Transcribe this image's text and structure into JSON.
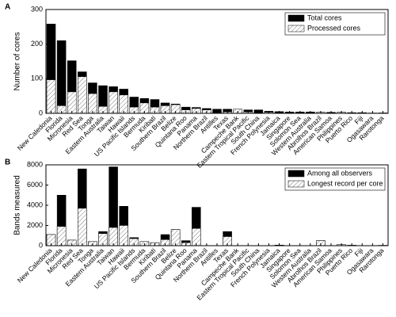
{
  "chart_data": [
    {
      "type": "bar",
      "panel_label": "A",
      "ylabel": "Number of cores",
      "categories": [
        "New Caledonia",
        "Florida",
        "Micronesia",
        "Red Sea",
        "Tonga",
        "Eastern Australia",
        "Taiwan",
        "Hawaii",
        "US Pacific Islands",
        "Bermuda",
        "Kiribati",
        "Southern Brazil",
        "Belize",
        "Quintana Roo",
        "Panama",
        "Northern Brazil",
        "Antilles",
        "Texas",
        "Campeche Bank",
        "Eastern Tropical Pacific",
        "South China",
        "French Polynesia",
        "Jamaica",
        "Singapore",
        "Solomon Sea",
        "Western Australia",
        "Abrolhos Brazil",
        "American Samoa",
        "Philippines",
        "Puerto Rico",
        "Fiji",
        "Ogasawara",
        "Rarotonga"
      ],
      "series": [
        {
          "name": "Total cores",
          "color": "#000000",
          "values": [
            258,
            210,
            152,
            120,
            88,
            80,
            77,
            70,
            47,
            43,
            40,
            30,
            27,
            18,
            17,
            14,
            12,
            12,
            12,
            10,
            10,
            6,
            5,
            4,
            4,
            4,
            3,
            3,
            3,
            2,
            2,
            1,
            1
          ]
        },
        {
          "name": "Processed cores",
          "color": "#ffffff",
          "hatch": true,
          "values": [
            97,
            22,
            62,
            106,
            57,
            20,
            62,
            53,
            18,
            30,
            18,
            22,
            25,
            10,
            14,
            10,
            2,
            4,
            12,
            4,
            0,
            3,
            0,
            0,
            0,
            0,
            3,
            0,
            3,
            0,
            0,
            0,
            1
          ]
        }
      ],
      "ylim": [
        0,
        300
      ],
      "yticks": [
        0,
        100,
        200,
        300
      ],
      "legend": "upper right"
    },
    {
      "type": "bar",
      "panel_label": "B",
      "ylabel": "Bands measured",
      "categories": [
        "New Caledonia",
        "Florida",
        "Micronesia",
        "Red Sea",
        "Tonga",
        "Eastern Australia",
        "Taiwan",
        "Hawaii",
        "US Pacific Islands",
        "Bermuda",
        "Kiribati",
        "Southern Brazil",
        "Belize",
        "Quintana Roo",
        "Panama",
        "Northern Brazil",
        "Antilles",
        "Texas",
        "Campeche Bank",
        "Eastern Tropical Pacific",
        "South China",
        "French Polynesia",
        "Jamaica",
        "Singapore",
        "Solomon Sea",
        "Western Australia",
        "Abrolhos Brazil",
        "American Samoa",
        "Philippines",
        "Puerto Rico",
        "Fiji",
        "Ogasawara",
        "Rarotonga"
      ],
      "series": [
        {
          "name": "Among all observers",
          "color": "#000000",
          "values": [
            1100,
            5000,
            550,
            7600,
            400,
            1400,
            7800,
            3900,
            800,
            400,
            300,
            1100,
            1600,
            500,
            3800,
            0,
            0,
            1400,
            0,
            0,
            0,
            0,
            60,
            0,
            0,
            0,
            500,
            0,
            100,
            40,
            0,
            0,
            30
          ]
        },
        {
          "name": "Longest record per core",
          "color": "#ffffff",
          "hatch": true,
          "values": [
            1100,
            1900,
            550,
            3700,
            400,
            1200,
            1800,
            2000,
            700,
            400,
            300,
            600,
            1600,
            300,
            1700,
            0,
            0,
            900,
            0,
            0,
            0,
            0,
            60,
            0,
            0,
            0,
            500,
            0,
            100,
            40,
            0,
            0,
            30
          ]
        }
      ],
      "ylim": [
        0,
        8000
      ],
      "yticks": [
        0,
        2000,
        4000,
        6000,
        8000
      ],
      "legend": "upper right"
    }
  ]
}
